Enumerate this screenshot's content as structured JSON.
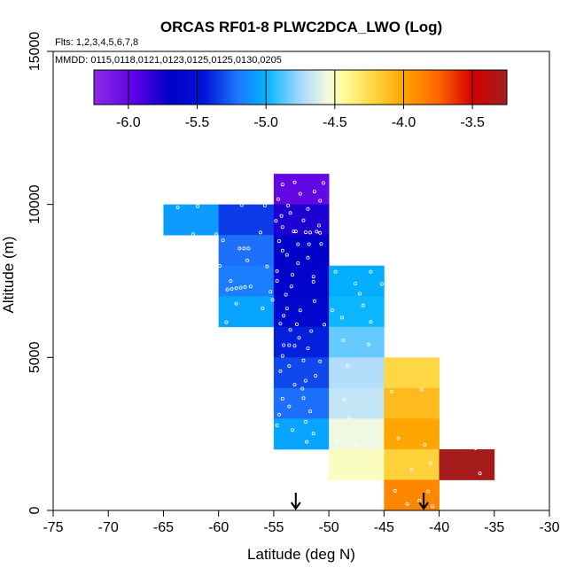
{
  "chart_data": {
    "type": "heatmap",
    "title": "ORCAS RF01-8 PLWC2DCA_LWO (Log)",
    "flights_note": "Flts: 1,2,3,4,5,6,7,8",
    "dates_note": "MMDD: 0115,0118,0121,0123,0125,0125,0130,0205",
    "xlabel": "Latitude (deg N)",
    "ylabel": "Altitude (m)",
    "xlim": [
      -75,
      -30
    ],
    "ylim": [
      0,
      15000
    ],
    "xticks": [
      -75,
      -70,
      -65,
      -60,
      -55,
      -50,
      -45,
      -40,
      -35,
      -30
    ],
    "yticks": [
      0,
      5000,
      10000,
      15000
    ],
    "cell_width_deg": 5,
    "cell_height_m": 1000,
    "colorbar": {
      "min": -6.25,
      "max": -3.25,
      "ticks": [
        -6.0,
        -5.5,
        -5.0,
        -4.5,
        -4.0,
        -3.5
      ],
      "tick_labels": [
        "-6.0",
        "-5.5",
        "-5.0",
        "-4.5",
        "-4.0",
        "-3.5"
      ],
      "stops": [
        {
          "v": -6.25,
          "c": "#8a2be2"
        },
        {
          "v": -5.95,
          "c": "#5c00e6"
        },
        {
          "v": -5.7,
          "c": "#0000c8"
        },
        {
          "v": -5.45,
          "c": "#0014d8"
        },
        {
          "v": -5.2,
          "c": "#1e78ff"
        },
        {
          "v": -5.0,
          "c": "#00b4ff"
        },
        {
          "v": -4.75,
          "c": "#a8d8ff"
        },
        {
          "v": -4.55,
          "c": "#f4fae0"
        },
        {
          "v": -4.45,
          "c": "#ffffa0"
        },
        {
          "v": -4.2,
          "c": "#ffd23c"
        },
        {
          "v": -4.0,
          "c": "#ffa500"
        },
        {
          "v": -3.75,
          "c": "#ff6600"
        },
        {
          "v": -3.5,
          "c": "#d60000"
        },
        {
          "v": -3.25,
          "c": "#a02020"
        }
      ]
    },
    "cells": [
      {
        "lat": -65,
        "alt": 9000,
        "value": -5.08
      },
      {
        "lat": -60,
        "alt": 9000,
        "value": -5.35
      },
      {
        "lat": -60,
        "alt": 8000,
        "value": -5.22
      },
      {
        "lat": -60,
        "alt": 7000,
        "value": -5.18
      },
      {
        "lat": -60,
        "alt": 6000,
        "value": -5.05
      },
      {
        "lat": -55,
        "alt": 10000,
        "value": -6.0
      },
      {
        "lat": -55,
        "alt": 9000,
        "value": -5.78
      },
      {
        "lat": -55,
        "alt": 8000,
        "value": -5.68
      },
      {
        "lat": -55,
        "alt": 7000,
        "value": -5.65
      },
      {
        "lat": -55,
        "alt": 6000,
        "value": -5.6
      },
      {
        "lat": -55,
        "alt": 5000,
        "value": -5.42
      },
      {
        "lat": -55,
        "alt": 4000,
        "value": -5.32
      },
      {
        "lat": -55,
        "alt": 3000,
        "value": -5.22
      },
      {
        "lat": -55,
        "alt": 2000,
        "value": -5.05
      },
      {
        "lat": -50,
        "alt": 7000,
        "value": -5.02
      },
      {
        "lat": -50,
        "alt": 6000,
        "value": -4.98
      },
      {
        "lat": -50,
        "alt": 5000,
        "value": -4.85
      },
      {
        "lat": -50,
        "alt": 4000,
        "value": -4.72
      },
      {
        "lat": -50,
        "alt": 3000,
        "value": -4.68
      },
      {
        "lat": -50,
        "alt": 2000,
        "value": -4.56
      },
      {
        "lat": -50,
        "alt": 1000,
        "value": -4.5
      },
      {
        "lat": -45,
        "alt": 4000,
        "value": -4.22
      },
      {
        "lat": -45,
        "alt": 3000,
        "value": -4.1
      },
      {
        "lat": -45,
        "alt": 2000,
        "value": -4.0
      },
      {
        "lat": -45,
        "alt": 1000,
        "value": -4.2
      },
      {
        "lat": -45,
        "alt": 0,
        "value": -3.88
      },
      {
        "lat": -40,
        "alt": 1000,
        "value": -3.28
      }
    ],
    "markers": [
      {
        "type": "arrow-down",
        "lat": -53.0
      },
      {
        "type": "arrow-down",
        "lat": -41.4
      }
    ],
    "sample_points": [
      [
        -50.5,
        10700
      ],
      [
        -53.1,
        10720
      ],
      [
        -54.2,
        10650
      ],
      [
        -51.3,
        10420
      ],
      [
        -52.6,
        10350
      ],
      [
        -54.6,
        10170
      ],
      [
        -50.8,
        10120
      ],
      [
        -53.7,
        9960
      ],
      [
        -55.8,
        9960
      ],
      [
        -57.9,
        9980
      ],
      [
        -61.9,
        9940
      ],
      [
        -63.7,
        9900
      ],
      [
        -51.9,
        9850
      ],
      [
        -53.5,
        9720
      ],
      [
        -54.3,
        9620
      ],
      [
        -52.3,
        9480
      ],
      [
        -54.8,
        9460
      ],
      [
        -50.9,
        9310
      ],
      [
        -54.2,
        9260
      ],
      [
        -53.0,
        9120
      ],
      [
        -53.2,
        9120
      ],
      [
        -51.1,
        9110
      ],
      [
        -52.1,
        9090
      ],
      [
        -51.7,
        9080
      ],
      [
        -50.8,
        9070
      ],
      [
        -62.3,
        9030
      ],
      [
        -60.2,
        9030
      ],
      [
        -56.2,
        9080
      ],
      [
        -59.6,
        8830
      ],
      [
        -54.5,
        8800
      ],
      [
        -52.8,
        8700
      ],
      [
        -51.8,
        8700
      ],
      [
        -50.7,
        8710
      ],
      [
        -49.1,
        8740
      ],
      [
        -48.3,
        8750
      ],
      [
        -47.1,
        8780
      ],
      [
        -58.1,
        8560
      ],
      [
        -57.7,
        8560
      ],
      [
        -57.3,
        8560
      ],
      [
        -54.2,
        8490
      ],
      [
        -53.8,
        8350
      ],
      [
        -51.9,
        8260
      ],
      [
        -57.4,
        8170
      ],
      [
        -52.8,
        8080
      ],
      [
        -59.9,
        7990
      ],
      [
        -55.6,
        7970
      ],
      [
        -54.7,
        7820
      ],
      [
        -49.4,
        7800
      ],
      [
        -46.2,
        7800
      ],
      [
        -53.3,
        7700
      ],
      [
        -51.4,
        7640
      ],
      [
        -54.7,
        7500
      ],
      [
        -58.9,
        7500
      ],
      [
        -51.4,
        7470
      ],
      [
        -47.6,
        7410
      ],
      [
        -45.2,
        7400
      ],
      [
        -53.4,
        7320
      ],
      [
        -57.1,
        7320
      ],
      [
        -57.6,
        7300
      ],
      [
        -58.0,
        7280
      ],
      [
        -58.4,
        7260
      ],
      [
        -58.8,
        7240
      ],
      [
        -59.2,
        7220
      ],
      [
        -55.3,
        7150
      ],
      [
        -53.9,
        7050
      ],
      [
        -47.2,
        7080
      ],
      [
        -55.1,
        6880
      ],
      [
        -58.4,
        6760
      ],
      [
        -51.3,
        6840
      ],
      [
        -46.9,
        6700
      ],
      [
        -53.8,
        6600
      ],
      [
        -52.6,
        6540
      ],
      [
        -56.0,
        6600
      ],
      [
        -49.7,
        6540
      ],
      [
        -54.1,
        6360
      ],
      [
        -48.8,
        6300
      ],
      [
        -46.2,
        6160
      ],
      [
        -54.4,
        6100
      ],
      [
        -59.3,
        6150
      ],
      [
        -52.9,
        6080
      ],
      [
        -50.4,
        6070
      ],
      [
        -53.5,
        5900
      ],
      [
        -51.6,
        5860
      ],
      [
        -52.7,
        5640
      ],
      [
        -48.7,
        5560
      ],
      [
        -54.1,
        5400
      ],
      [
        -53.6,
        5400
      ],
      [
        -53.1,
        5380
      ],
      [
        -46.4,
        5420
      ],
      [
        -51.9,
        5300
      ],
      [
        -54.2,
        5050
      ],
      [
        -52.3,
        4900
      ],
      [
        -50.8,
        4870
      ],
      [
        -53.6,
        4720
      ],
      [
        -48.3,
        4730
      ],
      [
        -54.4,
        4550
      ],
      [
        -51.2,
        4400
      ],
      [
        -52.1,
        4240
      ],
      [
        -53.1,
        4110
      ],
      [
        -52.4,
        3980
      ],
      [
        -44.3,
        3890
      ],
      [
        -41.6,
        3950
      ],
      [
        -54.2,
        3650
      ],
      [
        -52.3,
        3670
      ],
      [
        -48.6,
        3620
      ],
      [
        -53.6,
        3400
      ],
      [
        -51.7,
        3240
      ],
      [
        -54.5,
        3130
      ],
      [
        -48.2,
        3030
      ],
      [
        -52.1,
        2900
      ],
      [
        -54.7,
        2780
      ],
      [
        -53.3,
        2630
      ],
      [
        -51.4,
        2510
      ],
      [
        -49.3,
        2300
      ],
      [
        -47.5,
        2170
      ],
      [
        -52.0,
        2240
      ],
      [
        -43.7,
        2350
      ],
      [
        -41.3,
        2150
      ],
      [
        -38.9,
        2080
      ],
      [
        -36.7,
        2030
      ],
      [
        -40.8,
        1540
      ],
      [
        -42.5,
        1320
      ],
      [
        -36.3,
        1210
      ],
      [
        -44.0,
        640
      ],
      [
        -41.0,
        620
      ],
      [
        -41.8,
        320
      ],
      [
        -42.9,
        210
      ],
      [
        -40.6,
        140
      ]
    ]
  }
}
